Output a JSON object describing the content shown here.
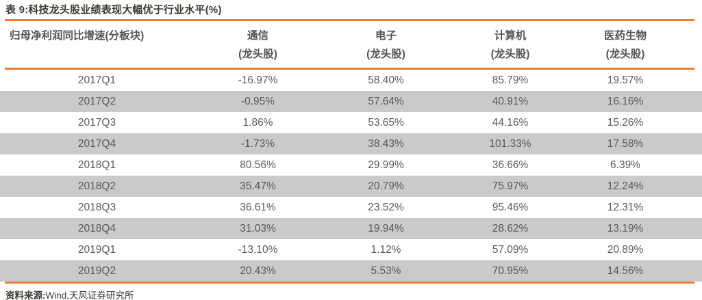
{
  "title": "表 9:科技龙头股业绩表现大幅优于行业水平(%)",
  "table": {
    "header": {
      "row_dimension": "归母净利润同比增速(分板块)",
      "columns": [
        {
          "name": "通信",
          "sub": "(龙头股)"
        },
        {
          "name": "电子",
          "sub": "(龙头股)"
        },
        {
          "name": "计算机",
          "sub": "(龙头股)"
        },
        {
          "name": "医药生物",
          "sub": "(龙头股)"
        }
      ]
    },
    "rows": [
      {
        "period": "2017Q1",
        "values": [
          "-16.97%",
          "58.40%",
          "85.79%",
          "19.57%"
        ]
      },
      {
        "period": "2017Q2",
        "values": [
          "-0.95%",
          "57.64%",
          "40.91%",
          "16.16%"
        ]
      },
      {
        "period": "2017Q3",
        "values": [
          "1.86%",
          "53.65%",
          "44.16%",
          "15.26%"
        ]
      },
      {
        "period": "2017Q4",
        "values": [
          "-1.73%",
          "38.43%",
          "101.33%",
          "17.58%"
        ]
      },
      {
        "period": "2018Q1",
        "values": [
          "80.56%",
          "29.99%",
          "36.66%",
          "6.39%"
        ]
      },
      {
        "period": "2018Q2",
        "values": [
          "35.47%",
          "20.79%",
          "75.97%",
          "12.24%"
        ]
      },
      {
        "period": "2018Q3",
        "values": [
          "36.61%",
          "23.52%",
          "95.46%",
          "12.31%"
        ]
      },
      {
        "period": "2018Q4",
        "values": [
          "31.03%",
          "19.94%",
          "28.62%",
          "13.19%"
        ]
      },
      {
        "period": "2019Q1",
        "values": [
          "-13.10%",
          "1.12%",
          "57.09%",
          "20.89%"
        ]
      },
      {
        "period": "2019Q2",
        "values": [
          "20.43%",
          "5.53%",
          "70.95%",
          "14.56%"
        ]
      }
    ]
  },
  "footer": {
    "source_label": "资料来源:",
    "source_text": "Wind,天风证券研究所"
  },
  "colors": {
    "accent_orange": "#ED7D31",
    "row_alt_gray": "#C9CACC",
    "cell_text_gray": "#5a5a5a",
    "header_text_gray": "#555555",
    "title_text": "#3e3a33"
  },
  "chart_data": {
    "type": "table",
    "title": "表 9:科技龙头股业绩表现大幅优于行业水平(%)",
    "row_dimension": "归母净利润同比增速(分板块)",
    "categories": [
      "2017Q1",
      "2017Q2",
      "2017Q3",
      "2017Q4",
      "2018Q1",
      "2018Q2",
      "2018Q3",
      "2018Q4",
      "2019Q1",
      "2019Q2"
    ],
    "series": [
      {
        "name": "通信(龙头股)",
        "values": [
          -16.97,
          -0.95,
          1.86,
          -1.73,
          80.56,
          35.47,
          36.61,
          31.03,
          -13.1,
          20.43
        ]
      },
      {
        "name": "电子(龙头股)",
        "values": [
          58.4,
          57.64,
          53.65,
          38.43,
          29.99,
          20.79,
          23.52,
          19.94,
          1.12,
          5.53
        ]
      },
      {
        "name": "计算机(龙头股)",
        "values": [
          85.79,
          40.91,
          44.16,
          101.33,
          36.66,
          75.97,
          95.46,
          28.62,
          57.09,
          70.95
        ]
      },
      {
        "name": "医药生物(龙头股)",
        "values": [
          19.57,
          16.16,
          15.26,
          17.58,
          6.39,
          12.24,
          12.31,
          13.19,
          20.89,
          14.56
        ]
      }
    ],
    "unit": "%"
  }
}
